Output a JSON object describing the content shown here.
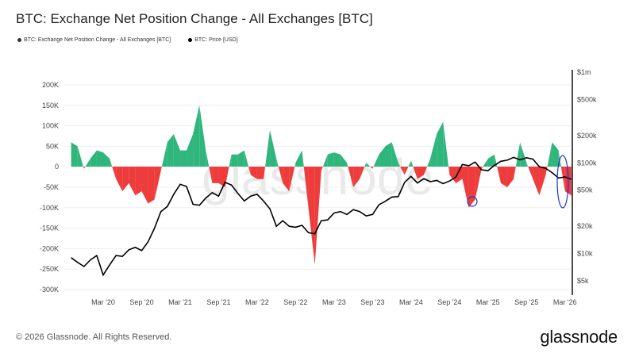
{
  "title": "BTC: Exchange Net Position Change - All Exchanges [BTC]",
  "footer": "© 2026 Glassnode. All Rights Reserved.",
  "logo": "glassnode",
  "watermark": "glassnode",
  "chart_data": {
    "type": "area",
    "title": "BTC: Exchange Net Position Change - All Exchanges [BTC]",
    "legend": [
      "BTC: Exchange Net Position Change - All Exchanges [BTC]",
      "BTC: Price [USD]"
    ],
    "legend_placement": "top-left",
    "grid": true,
    "colors": {
      "positive": "#2fb67c",
      "negative": "#ee3b3b",
      "price": "#000000",
      "annotation": "#2233cc"
    },
    "x_ticks": [
      "Mar '20",
      "Sep '20",
      "Mar '21",
      "Sep '21",
      "Mar '22",
      "Sep '22",
      "Mar '23",
      "Sep '23",
      "Mar '24",
      "Sep '24",
      "Mar '25",
      "Sep '25",
      "Mar '26"
    ],
    "y_left": {
      "ticks": [
        "200K",
        "150K",
        "100K",
        "50K",
        "0",
        "-50K",
        "-100K",
        "-150K",
        "-200K",
        "-250K",
        "-300K"
      ],
      "range": [
        -300000,
        200000
      ]
    },
    "y_right": {
      "scale": "log",
      "ticks": [
        "$1m",
        "$500k",
        "$200k",
        "$100k",
        "$50k",
        "$20k",
        "$10k",
        "$5k"
      ],
      "range": [
        5000,
        1000000
      ]
    },
    "x": [
      "2019-10",
      "2019-11",
      "2019-12",
      "2020-01",
      "2020-02",
      "2020-03",
      "2020-04",
      "2020-05",
      "2020-06",
      "2020-07",
      "2020-08",
      "2020-09",
      "2020-10",
      "2020-11",
      "2020-12",
      "2021-01",
      "2021-02",
      "2021-03",
      "2021-04",
      "2021-05",
      "2021-06",
      "2021-07",
      "2021-08",
      "2021-09",
      "2021-10",
      "2021-11",
      "2021-12",
      "2022-01",
      "2022-02",
      "2022-03",
      "2022-04",
      "2022-05",
      "2022-06",
      "2022-07",
      "2022-08",
      "2022-09",
      "2022-10",
      "2022-11",
      "2022-12",
      "2023-01",
      "2023-02",
      "2023-03",
      "2023-04",
      "2023-05",
      "2023-06",
      "2023-07",
      "2023-08",
      "2023-09",
      "2023-10",
      "2023-11",
      "2023-12",
      "2024-01",
      "2024-02",
      "2024-03",
      "2024-04",
      "2024-05",
      "2024-06",
      "2024-07",
      "2024-08",
      "2024-09",
      "2024-10",
      "2024-11",
      "2024-12",
      "2025-01",
      "2025-02",
      "2025-03",
      "2025-04",
      "2025-05",
      "2025-06",
      "2025-07",
      "2025-08",
      "2025-09",
      "2025-10",
      "2025-11",
      "2025-12",
      "2026-01",
      "2026-02",
      "2026-03",
      "2026-04"
    ],
    "series": [
      {
        "name": "BTC: Exchange Net Position Change - All Exchanges [BTC]",
        "axis": "left",
        "values": [
          60000,
          50000,
          -5000,
          20000,
          40000,
          35000,
          20000,
          -30000,
          -60000,
          -40000,
          -70000,
          -60000,
          -90000,
          -80000,
          -10000,
          60000,
          80000,
          40000,
          40000,
          80000,
          150000,
          40000,
          -40000,
          -40000,
          -50000,
          30000,
          30000,
          40000,
          -20000,
          -30000,
          -30000,
          90000,
          20000,
          -40000,
          -60000,
          10000,
          40000,
          -100000,
          -240000,
          -10000,
          30000,
          35000,
          30000,
          10000,
          -50000,
          -30000,
          10000,
          -5000,
          30000,
          50000,
          60000,
          10000,
          -20000,
          15000,
          -30000,
          -20000,
          20000,
          80000,
          110000,
          -20000,
          -40000,
          -30000,
          -100000,
          -80000,
          -5000,
          20000,
          30000,
          -40000,
          -50000,
          -30000,
          60000,
          10000,
          -30000,
          -70000,
          -20000,
          60000,
          40000,
          -60000,
          -70000
        ]
      },
      {
        "name": "BTC: Price [USD]",
        "axis": "right",
        "values": [
          9000,
          8000,
          7200,
          8500,
          9500,
          5800,
          7500,
          9500,
          9300,
          11000,
          11700,
          10800,
          13500,
          19000,
          29000,
          33000,
          45000,
          58000,
          55000,
          35000,
          34000,
          41000,
          47000,
          43000,
          61000,
          57000,
          46000,
          38000,
          43000,
          45000,
          38000,
          31000,
          20000,
          23000,
          20000,
          19500,
          20500,
          17000,
          16500,
          23000,
          23500,
          28000,
          29000,
          27000,
          30500,
          29000,
          26000,
          27000,
          34500,
          37700,
          42000,
          42500,
          61000,
          71000,
          60000,
          67000,
          62000,
          64000,
          59000,
          63000,
          70000,
          96000,
          93000,
          102000,
          84000,
          82000,
          94000,
          104000,
          107000,
          115000,
          108000,
          114000,
          110000,
          91000,
          87000,
          78000,
          68000,
          70000,
          66000
        ]
      }
    ]
  }
}
